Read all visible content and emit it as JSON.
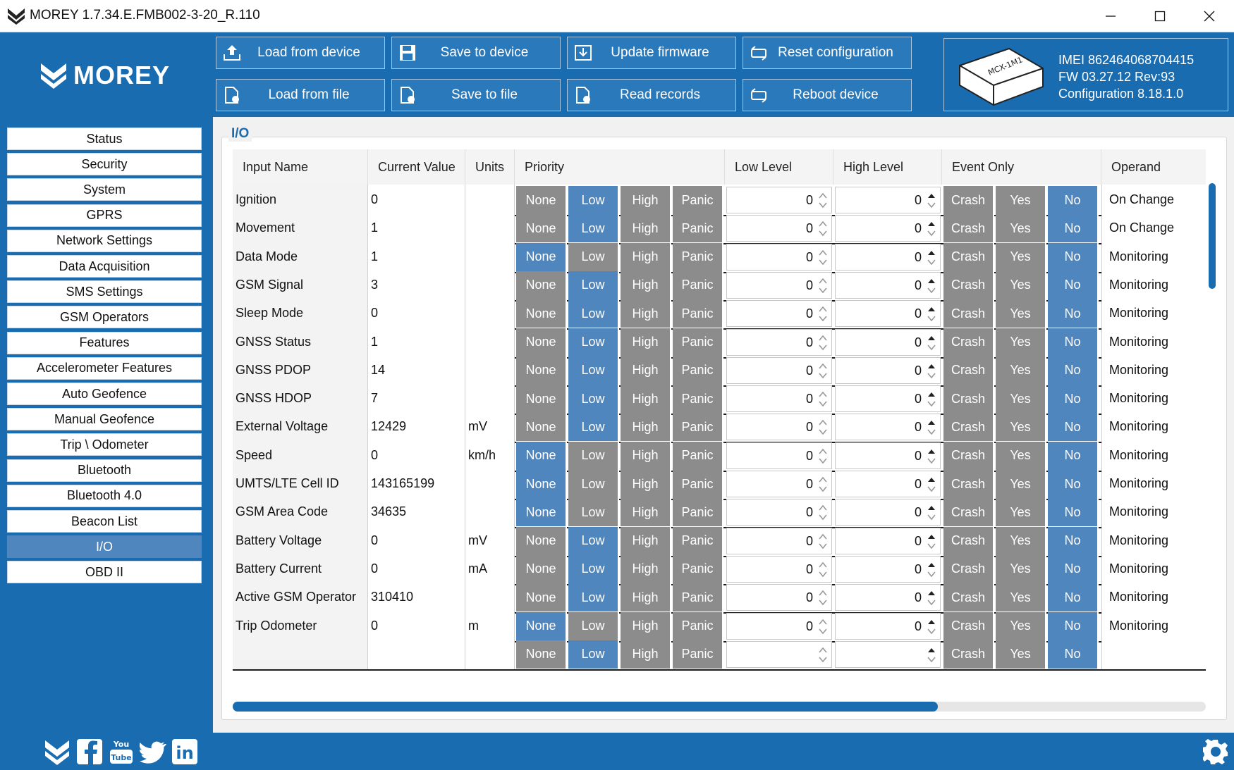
{
  "window": {
    "title": "MOREY 1.7.34.E.FMB002-3-20_R.110"
  },
  "brand": {
    "name": "MOREY"
  },
  "toolbar": {
    "load_device": "Load from device",
    "save_device": "Save to device",
    "update_fw": "Update firmware",
    "reset_cfg": "Reset configuration",
    "load_file": "Load from file",
    "save_file": "Save to file",
    "read_records": "Read records",
    "reboot": "Reboot device"
  },
  "device": {
    "imei": "IMEI  862464068704415",
    "fw": "FW  03.27.12 Rev:93",
    "config": "Configuration  8.18.1.0",
    "dongle_label": "MCX-1M1"
  },
  "sidebar": {
    "items": [
      "Status",
      "Security",
      "System",
      "GPRS",
      "Network Settings",
      "Data Acquisition",
      "SMS Settings",
      "GSM Operators",
      "Features",
      "Accelerometer Features",
      "Auto Geofence",
      "Manual Geofence",
      "Trip \\ Odometer",
      "Bluetooth",
      "Bluetooth 4.0",
      "Beacon List",
      "I/O",
      "OBD II"
    ],
    "active": "I/O"
  },
  "section": {
    "title": "I/O"
  },
  "table": {
    "headers": {
      "name": "Input Name",
      "value": "Current Value",
      "units": "Units",
      "priority": "Priority",
      "low": "Low Level",
      "high": "High Level",
      "event": "Event Only",
      "operand": "Operand"
    },
    "priority_options": [
      "None",
      "Low",
      "High",
      "Panic"
    ],
    "event_options": [
      "Crash",
      "Yes",
      "No"
    ],
    "rows": [
      {
        "name": "Ignition",
        "value": "0",
        "units": "",
        "priority": "Low",
        "low": "0",
        "high": "0",
        "event": "No",
        "operand": "On Change"
      },
      {
        "name": "Movement",
        "value": "1",
        "units": "",
        "priority": "Low",
        "low": "0",
        "high": "0",
        "event": "No",
        "operand": "On Change"
      },
      {
        "name": "Data Mode",
        "value": "1",
        "units": "",
        "priority": "None",
        "low": "0",
        "high": "0",
        "event": "No",
        "operand": "Monitoring"
      },
      {
        "name": "GSM Signal",
        "value": "3",
        "units": "",
        "priority": "Low",
        "low": "0",
        "high": "0",
        "event": "No",
        "operand": "Monitoring"
      },
      {
        "name": "Sleep Mode",
        "value": "0",
        "units": "",
        "priority": "Low",
        "low": "0",
        "high": "0",
        "event": "No",
        "operand": "Monitoring"
      },
      {
        "name": "GNSS Status",
        "value": "1",
        "units": "",
        "priority": "Low",
        "low": "0",
        "high": "0",
        "event": "No",
        "operand": "Monitoring"
      },
      {
        "name": "GNSS PDOP",
        "value": "14",
        "units": "",
        "priority": "Low",
        "low": "0",
        "high": "0",
        "event": "No",
        "operand": "Monitoring"
      },
      {
        "name": "GNSS HDOP",
        "value": "7",
        "units": "",
        "priority": "Low",
        "low": "0",
        "high": "0",
        "event": "No",
        "operand": "Monitoring"
      },
      {
        "name": "External Voltage",
        "value": "12429",
        "units": "mV",
        "priority": "Low",
        "low": "0",
        "high": "0",
        "event": "No",
        "operand": "Monitoring"
      },
      {
        "name": "Speed",
        "value": "0",
        "units": "km/h",
        "priority": "None",
        "low": "0",
        "high": "0",
        "event": "No",
        "operand": "Monitoring"
      },
      {
        "name": "UMTS/LTE Cell ID",
        "value": "143165199",
        "units": "",
        "priority": "None",
        "low": "0",
        "high": "0",
        "event": "No",
        "operand": "Monitoring"
      },
      {
        "name": "GSM Area Code",
        "value": "34635",
        "units": "",
        "priority": "None",
        "low": "0",
        "high": "0",
        "event": "No",
        "operand": "Monitoring"
      },
      {
        "name": "Battery Voltage",
        "value": "0",
        "units": "mV",
        "priority": "Low",
        "low": "0",
        "high": "0",
        "event": "No",
        "operand": "Monitoring"
      },
      {
        "name": "Battery Current",
        "value": "0",
        "units": "mA",
        "priority": "Low",
        "low": "0",
        "high": "0",
        "event": "No",
        "operand": "Monitoring"
      },
      {
        "name": "Active GSM Operator",
        "value": "310410",
        "units": "",
        "priority": "Low",
        "low": "0",
        "high": "0",
        "event": "No",
        "operand": "Monitoring"
      },
      {
        "name": "Trip Odometer",
        "value": "0",
        "units": "m",
        "priority": "None",
        "low": "0",
        "high": "0",
        "event": "No",
        "operand": "Monitoring"
      },
      {
        "name": "",
        "value": "",
        "units": "",
        "priority": "Low",
        "low": "",
        "high": "",
        "event": "No",
        "operand": ""
      }
    ]
  },
  "social": {
    "icons": [
      "morey-icon",
      "facebook-icon",
      "youtube-icon",
      "twitter-icon",
      "linkedin-icon"
    ],
    "youtube_text": "You Tube",
    "linkedin_text": "in"
  },
  "colors": {
    "brand_blue": "#1a6cb0",
    "selected": "#4f86bd",
    "unselected": "#8c8c8c"
  }
}
